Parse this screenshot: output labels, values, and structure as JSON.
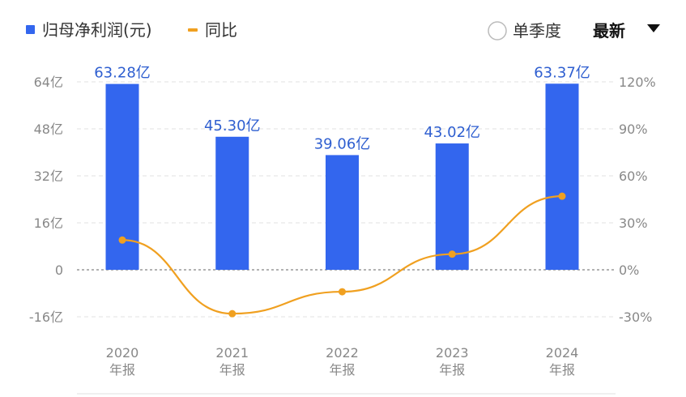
{
  "legend": {
    "bar_label": "归母净利润(元)",
    "line_label": "同比"
  },
  "controls": {
    "single_quarter_label": "单季度",
    "latest_label": "最新"
  },
  "colors": {
    "bar": "#3366ee",
    "line": "#f0a020",
    "label": "#2f5fd0",
    "grid": "#e0e0e0",
    "zero": "#999999"
  },
  "chart_data": {
    "type": "bar",
    "categories": [
      "2020\n年报",
      "2021\n年报",
      "2022\n年报",
      "2023\n年报",
      "2024\n年报"
    ],
    "series": [
      {
        "name": "归母净利润(元)",
        "type": "bar",
        "axis": "left",
        "values": [
          63.28,
          45.3,
          39.06,
          43.02,
          63.37
        ],
        "labels": [
          "63.28亿",
          "45.30亿",
          "39.06亿",
          "43.02亿",
          "63.37亿"
        ]
      },
      {
        "name": "同比",
        "type": "line",
        "axis": "right",
        "values": [
          19,
          -28,
          -14,
          10,
          47
        ]
      }
    ],
    "left_axis": {
      "ylim": [
        -16,
        64
      ],
      "ticks": [
        64,
        48,
        32,
        16,
        0,
        -16
      ],
      "tick_labels": [
        "64亿",
        "48亿",
        "32亿",
        "16亿",
        "0",
        "-16亿"
      ]
    },
    "right_axis": {
      "ylim": [
        -30,
        120
      ],
      "ticks": [
        120,
        90,
        60,
        30,
        0,
        -30
      ],
      "tick_labels": [
        "120%",
        "90%",
        "60%",
        "30%",
        "0%",
        "-30%"
      ]
    },
    "grid": true,
    "legend_position": "top-left"
  }
}
